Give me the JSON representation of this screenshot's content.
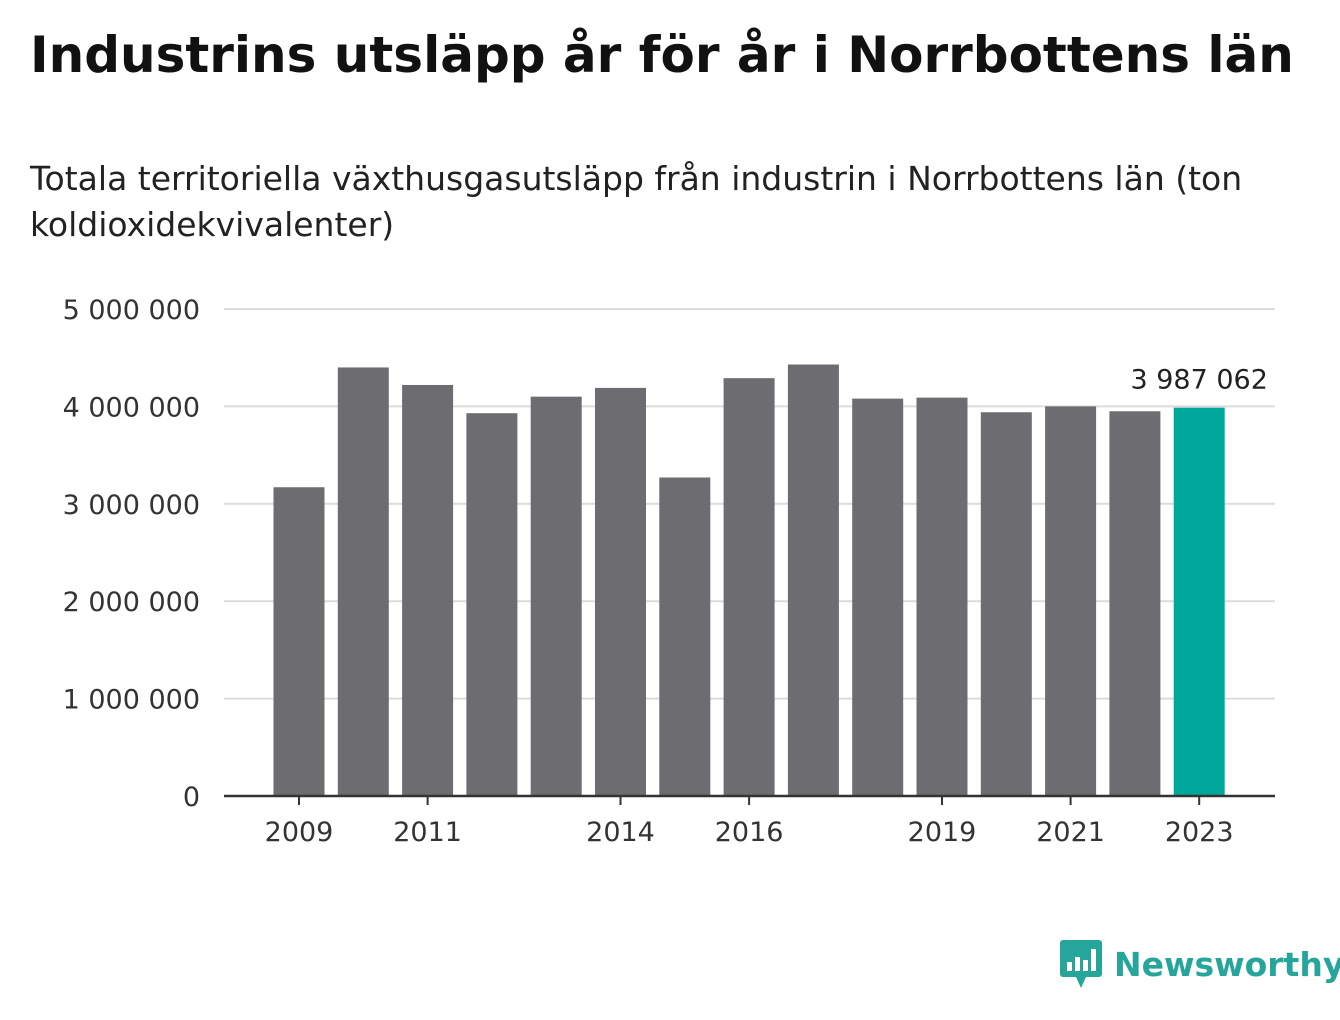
{
  "header": {
    "title": "Industrins utsläpp år för år i Norrbottens län",
    "subtitle": "Totala territoriella växthusgasutsläpp från industrin i Norrbottens län (ton koldioxidekvivalenter)"
  },
  "brand": {
    "name": "Newsworthy",
    "color": "#26a69a"
  },
  "colors": {
    "bar": "#6d6c71",
    "highlight": "#00a79b",
    "grid": "#dcdcdc",
    "axis": "#333333"
  },
  "chart_data": {
    "type": "bar",
    "title": "",
    "xlabel": "",
    "ylabel": "",
    "categories": [
      "2009",
      "2010",
      "2011",
      "2012",
      "2013",
      "2014",
      "2015",
      "2016",
      "2017",
      "2018",
      "2019",
      "2020",
      "2021",
      "2022",
      "2023"
    ],
    "values": [
      3170000,
      4400000,
      4220000,
      3930000,
      4100000,
      4190000,
      3270000,
      4290000,
      4430000,
      4080000,
      4090000,
      3940000,
      4000000,
      3950000,
      3987062
    ],
    "x_tick_labels": [
      "2009",
      "2011",
      "2014",
      "2016",
      "2019",
      "2021",
      "2023"
    ],
    "y_ticks": [
      {
        "value": 0,
        "label": "0"
      },
      {
        "value": 1000000,
        "label": "1 000 000"
      },
      {
        "value": 2000000,
        "label": "2 000 000"
      },
      {
        "value": 3000000,
        "label": "3 000 000"
      },
      {
        "value": 4000000,
        "label": "4 000 000"
      },
      {
        "value": 5000000,
        "label": "5 000 000"
      }
    ],
    "ylim": [
      0,
      5000000
    ],
    "highlight_category": "2023",
    "annotation": {
      "category": "2023",
      "label": "3 987 062"
    },
    "grid": true,
    "legend": "none"
  }
}
